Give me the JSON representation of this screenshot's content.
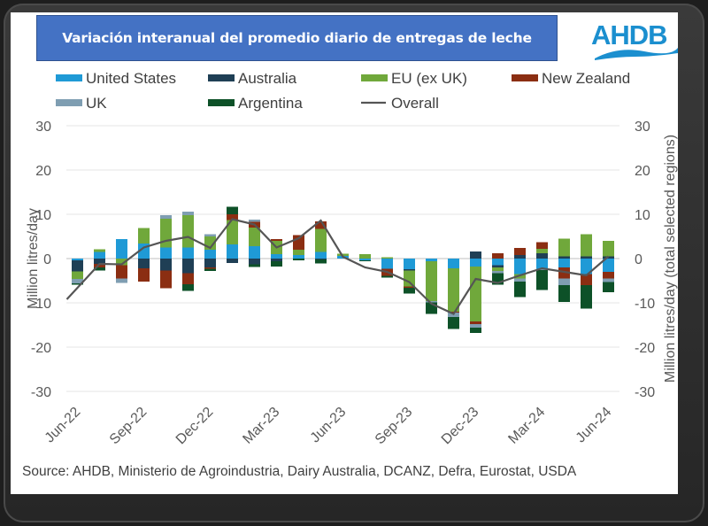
{
  "title": "Variación interanual del promedio diario de entregas de leche",
  "logo_text": "AHDB",
  "source": "Source: AHDB, Ministerio de Agroindustria, Dairy Australia, DCANZ, Defra, Eurostat, USDA",
  "colors": {
    "title_bg": "#4472c4",
    "United States": "#1f9ad6",
    "Australia": "#1f3f55",
    "EU (ex UK)": "#70a83b",
    "New Zealand": "#8b2e12",
    "UK": "#7f9eb2",
    "Argentina": "#0d5128",
    "Overall": "#555555"
  },
  "chart_data": {
    "type": "bar",
    "stacked": true,
    "title": "Variación interanual del promedio diario de entregas de leche",
    "ylabel": "Million litres/day",
    "y2label": "Million litres/day (total selected regions)",
    "ylim": [
      -30,
      30
    ],
    "y2lim": [
      -30,
      30
    ],
    "yticks": [
      30,
      20,
      10,
      0,
      -10,
      -20,
      -30
    ],
    "grid": true,
    "legend_position": "top",
    "x": [
      "Jun-22",
      "Jul-22",
      "Aug-22",
      "Sep-22",
      "Oct-22",
      "Nov-22",
      "Dec-22",
      "Jan-23",
      "Feb-23",
      "Mar-23",
      "Apr-23",
      "May-23",
      "Jun-23",
      "Jul-23",
      "Aug-23",
      "Sep-23",
      "Oct-23",
      "Nov-23",
      "Dec-23",
      "Jan-24",
      "Feb-24",
      "Mar-24",
      "Apr-24",
      "May-24",
      "Jun-24"
    ],
    "xtick_labels": [
      "Jun-22",
      "Sep-22",
      "Dec-22",
      "Mar-23",
      "Jun-23",
      "Sep-23",
      "Dec-23",
      "Mar-24",
      "Jun-24"
    ],
    "legend": [
      "United States",
      "Australia",
      "EU (ex UK)",
      "New Zealand",
      "UK",
      "Argentina",
      "Overall"
    ],
    "series": [
      {
        "name": "United States",
        "values": [
          -0.4,
          1.5,
          4.4,
          3.4,
          2.5,
          2.5,
          2.0,
          3.2,
          2.8,
          1.0,
          0.8,
          1.5,
          0.6,
          -0.4,
          -2.3,
          -2.4,
          -0.6,
          -2.2,
          -1.8,
          -1.5,
          -3.5,
          -2.3,
          -2.0,
          -3.5,
          -3.0
        ]
      },
      {
        "name": "Australia",
        "values": [
          -2.5,
          -1.2,
          0.0,
          -2.2,
          -2.7,
          -3.3,
          -2.0,
          -1.0,
          -1.3,
          -0.6,
          0.0,
          -0.2,
          0.0,
          0.0,
          0.0,
          -0.3,
          0.0,
          0.0,
          1.6,
          -0.5,
          0.8,
          1.2,
          0.5,
          0.5,
          0.5
        ]
      },
      {
        "name": "EU (ex UK)",
        "values": [
          -1.7,
          0.6,
          -1.5,
          3.5,
          6.5,
          7.3,
          3.0,
          5.5,
          4.2,
          3.0,
          1.2,
          5.2,
          0.5,
          1.0,
          0.3,
          -3.6,
          -9.0,
          -9.8,
          -12.4,
          -0.8,
          -1.0,
          1.0,
          4.0,
          5.0,
          3.5
        ]
      },
      {
        "name": "New Zealand",
        "values": [
          0.0,
          -0.8,
          -3.0,
          -3.0,
          -4.0,
          -2.5,
          -0.3,
          1.3,
          1.3,
          0.4,
          3.3,
          1.7,
          0.0,
          0.0,
          -1.6,
          -0.3,
          0.0,
          -0.2,
          -0.6,
          1.2,
          1.6,
          1.5,
          -2.5,
          -2.5,
          -1.5
        ]
      },
      {
        "name": "UK",
        "values": [
          -1.0,
          0.0,
          -1.0,
          0.0,
          0.8,
          0.8,
          0.5,
          0.0,
          0.5,
          0.0,
          0.0,
          0.0,
          0.0,
          0.0,
          0.0,
          0.0,
          -0.3,
          -1.0,
          -0.8,
          -0.5,
          -0.7,
          -0.3,
          -1.5,
          0.0,
          -0.8
        ]
      },
      {
        "name": "Argentina",
        "values": [
          -0.3,
          -0.7,
          0.0,
          0.0,
          0.0,
          -1.5,
          -0.5,
          1.7,
          -0.6,
          -1.2,
          -0.4,
          -0.9,
          0.0,
          -0.2,
          -0.4,
          -1.3,
          -2.6,
          -2.7,
          -1.2,
          -2.6,
          -3.5,
          -4.5,
          -3.8,
          -5.3,
          -2.3
        ]
      },
      {
        "name": "Overall",
        "type": "line",
        "values": [
          -9.2,
          -1.2,
          -1.3,
          2.5,
          4.0,
          4.9,
          2.4,
          8.9,
          7.7,
          2.5,
          4.6,
          8.6,
          0.4,
          -2.0,
          -3.0,
          -5.3,
          -10.2,
          -12.5,
          -4.6,
          -5.5,
          -3.8,
          -2.2,
          -3.0,
          -3.8,
          0.5
        ]
      }
    ]
  }
}
